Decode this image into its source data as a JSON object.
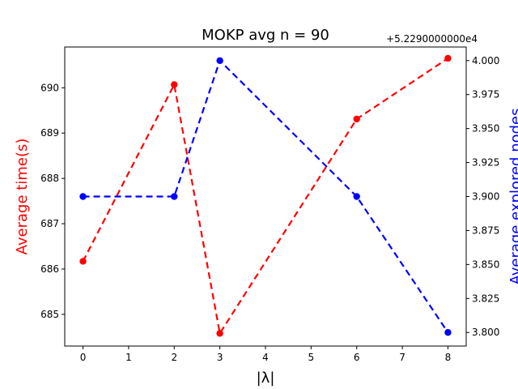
{
  "chart_data": {
    "type": "line",
    "title": "MOKP avg n = 90",
    "xlabel": "|λ|",
    "x": [
      0,
      2,
      3,
      6,
      8
    ],
    "xlim": [
      -0.4,
      8.4
    ],
    "xticks": [
      0,
      1,
      2,
      3,
      4,
      5,
      6,
      7,
      8
    ],
    "grid": false,
    "series": [
      {
        "axis": "left",
        "color": "#ff0000",
        "linestyle": "dashed",
        "marker": "circle",
        "values": [
          686.17,
          690.07,
          684.58,
          689.31,
          690.65
        ]
      },
      {
        "axis": "right",
        "color": "#0000ff",
        "linestyle": "dashed",
        "marker": "circle",
        "values": [
          52293.9,
          52293.9,
          52294.0,
          52293.9,
          52293.8
        ]
      }
    ],
    "y_left": {
      "label": "Average time(s)",
      "color": "#ff0000",
      "lim": [
        684.3,
        690.9
      ],
      "ticks": [
        685,
        686,
        687,
        688,
        689,
        690
      ],
      "tick_labels": [
        "685",
        "686",
        "687",
        "688",
        "689",
        "690"
      ]
    },
    "y_right": {
      "label": "Average explored nodes",
      "color": "#0000ff",
      "lim": [
        52293.79,
        52294.01
      ],
      "ticks": [
        52293.8,
        52293.825,
        52293.85,
        52293.875,
        52293.9,
        52293.925,
        52293.95,
        52293.975,
        52294.0
      ],
      "tick_labels": [
        "3.800",
        "3.825",
        "3.850",
        "3.875",
        "3.900",
        "3.925",
        "3.950",
        "3.975",
        "4.000"
      ],
      "offset_text": "+5.2290000000e4"
    }
  }
}
